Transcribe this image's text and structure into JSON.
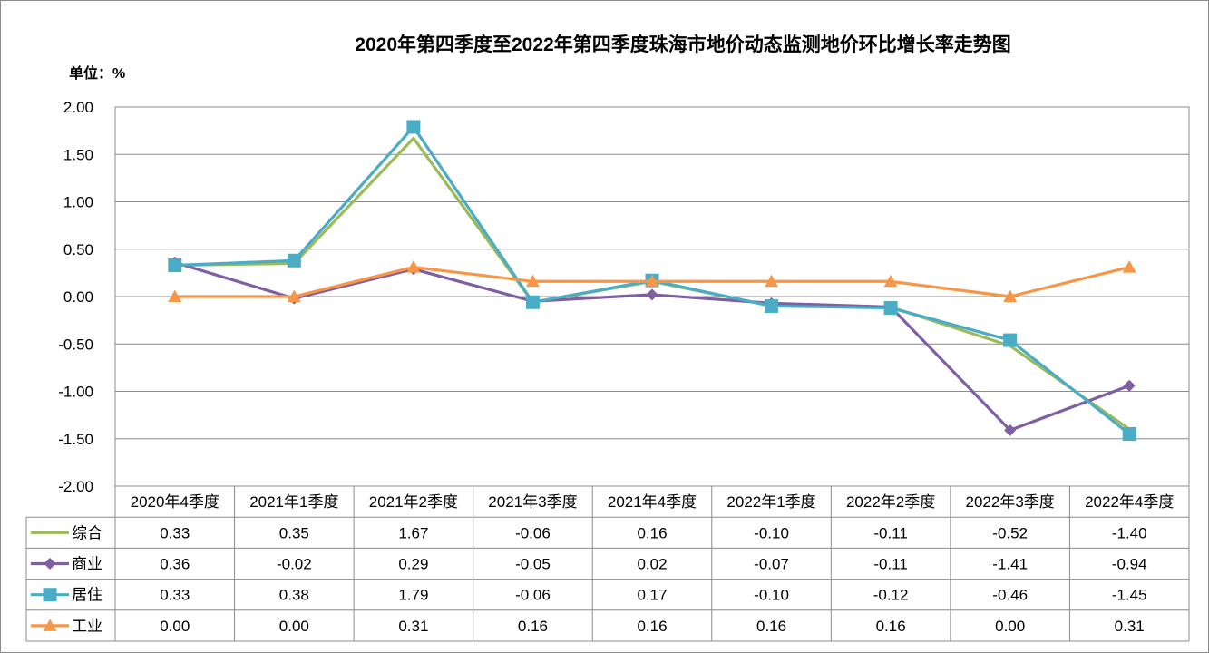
{
  "chart_data": {
    "type": "line",
    "title": "2020年第四季度至2022年第四季度珠海市地价动态监测地价环比增长率走势图",
    "unit_label": "单位：%",
    "ylim": [
      -2.0,
      2.0
    ],
    "yticks": [
      "2.00",
      "1.50",
      "1.00",
      "0.50",
      "0.00",
      "-0.50",
      "-1.00",
      "-1.50",
      "-2.00"
    ],
    "ytick_values": [
      2.0,
      1.5,
      1.0,
      0.5,
      0.0,
      -0.5,
      -1.0,
      -1.5,
      -2.0
    ],
    "grid": true,
    "legend": "data-table-left",
    "categories": [
      "2020年4季度",
      "2021年1季度",
      "2021年2季度",
      "2021年3季度",
      "2021年4季度",
      "2022年1季度",
      "2022年2季度",
      "2022年3季度",
      "2022年4季度"
    ],
    "series": [
      {
        "name": "综合",
        "color": "#9bbb59",
        "marker": "none",
        "values": [
          0.33,
          0.35,
          1.67,
          -0.06,
          0.16,
          -0.1,
          -0.11,
          -0.52,
          -1.4
        ],
        "labels": [
          "0.33",
          "0.35",
          "1.67",
          "-0.06",
          "0.16",
          "-0.10",
          "-0.11",
          "-0.52",
          "-1.40"
        ]
      },
      {
        "name": "商业",
        "color": "#7f5fa3",
        "marker": "diamond",
        "values": [
          0.36,
          -0.02,
          0.29,
          -0.05,
          0.02,
          -0.07,
          -0.11,
          -1.41,
          -0.94
        ],
        "labels": [
          "0.36",
          "-0.02",
          "0.29",
          "-0.05",
          "0.02",
          "-0.07",
          "-0.11",
          "-1.41",
          "-0.94"
        ]
      },
      {
        "name": "居住",
        "color": "#4bacc6",
        "marker": "square",
        "values": [
          0.33,
          0.38,
          1.79,
          -0.06,
          0.17,
          -0.1,
          -0.12,
          -0.46,
          -1.45
        ],
        "labels": [
          "0.33",
          "0.38",
          "1.79",
          "-0.06",
          "0.17",
          "-0.10",
          "-0.12",
          "-0.46",
          "-1.45"
        ]
      },
      {
        "name": "工业",
        "color": "#f79646",
        "marker": "triangle",
        "values": [
          0.0,
          0.0,
          0.31,
          0.16,
          0.16,
          0.16,
          0.16,
          0.0,
          0.31
        ],
        "labels": [
          "0.00",
          "0.00",
          "0.31",
          "0.16",
          "0.16",
          "0.16",
          "0.16",
          "0.00",
          "0.31"
        ]
      }
    ]
  }
}
